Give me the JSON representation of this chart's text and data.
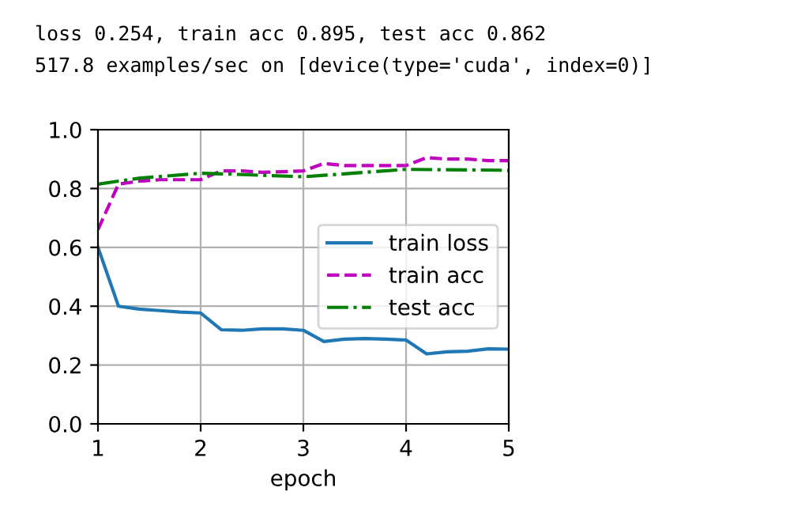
{
  "chart_data": {
    "type": "line",
    "xlabel": "epoch",
    "annotations": [
      "loss 0.254, train acc 0.895, test acc 0.862",
      "517.8 examples/sec on [device(type='cuda', index=0)]"
    ],
    "xlim": [
      1,
      5
    ],
    "xticks": [
      1,
      2,
      3,
      4,
      5
    ],
    "ylim": [
      0,
      1
    ],
    "yticks": [
      {
        "value": 0,
        "label": "0.0"
      },
      {
        "value": 0.2,
        "label": "0.2"
      },
      {
        "value": 0.4,
        "label": "0.4"
      },
      {
        "value": 0.6,
        "label": "0.6"
      },
      {
        "value": 0.8,
        "label": "0.8"
      },
      {
        "value": 1,
        "label": "1.0"
      }
    ],
    "grid": true,
    "legend": "right",
    "series": [
      {
        "name": "train loss",
        "color": "#1f77b4",
        "line_style": "solid",
        "x": [
          1.0,
          1.2,
          1.4,
          1.6,
          1.8,
          2.0,
          2.2,
          2.4,
          2.6,
          2.8,
          3.0,
          3.2,
          3.4,
          3.6,
          3.8,
          4.0,
          4.2,
          4.4,
          4.6,
          4.8,
          5.0
        ],
        "values": [
          0.6,
          0.4,
          0.39,
          0.385,
          0.38,
          0.377,
          0.32,
          0.318,
          0.323,
          0.323,
          0.318,
          0.28,
          0.288,
          0.29,
          0.288,
          0.285,
          0.238,
          0.245,
          0.247,
          0.255,
          0.254
        ]
      },
      {
        "name": "train acc",
        "color": "#bf00bf",
        "line_style": "dashed",
        "x": [
          1.0,
          1.2,
          1.4,
          1.6,
          1.8,
          2.0,
          2.2,
          2.4,
          2.6,
          2.8,
          3.0,
          3.2,
          3.4,
          3.6,
          3.8,
          4.0,
          4.2,
          4.4,
          4.6,
          4.8,
          5.0
        ],
        "values": [
          0.66,
          0.815,
          0.825,
          0.83,
          0.83,
          0.83,
          0.86,
          0.86,
          0.855,
          0.857,
          0.86,
          0.885,
          0.878,
          0.878,
          0.878,
          0.878,
          0.905,
          0.9,
          0.9,
          0.895,
          0.895
        ]
      },
      {
        "name": "test acc",
        "color": "#008000",
        "line_style": "dashdot",
        "x": [
          1.0,
          1.4,
          2.0,
          2.2,
          3.0,
          3.2,
          4.0,
          5.0
        ],
        "values": [
          0.815,
          0.835,
          0.852,
          0.85,
          0.84,
          0.845,
          0.865,
          0.862
        ]
      }
    ]
  }
}
